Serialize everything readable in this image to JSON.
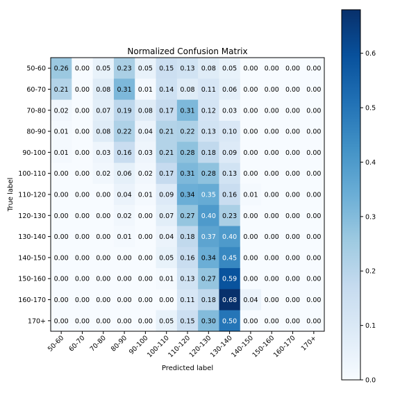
{
  "chart_data": {
    "type": "heatmap",
    "title": "Normalized Confusion Matrix",
    "xlabel": "Predicted label",
    "ylabel": "True label",
    "x_categories": [
      "50-60",
      "60-70",
      "70-80",
      "80-90",
      "90-100",
      "100-110",
      "110-120",
      "120-130",
      "130-140",
      "140-150",
      "150-160",
      "160-170",
      "170+"
    ],
    "y_categories": [
      "50-60",
      "60-70",
      "70-80",
      "80-90",
      "90-100",
      "100-110",
      "110-120",
      "120-130",
      "130-140",
      "140-150",
      "150-160",
      "160-170",
      "170+"
    ],
    "values": [
      [
        0.26,
        0.0,
        0.05,
        0.23,
        0.05,
        0.15,
        0.13,
        0.08,
        0.05,
        0.0,
        0.0,
        0.0,
        0.0
      ],
      [
        0.21,
        0.0,
        0.08,
        0.31,
        0.01,
        0.14,
        0.08,
        0.11,
        0.06,
        0.0,
        0.0,
        0.0,
        0.0
      ],
      [
        0.02,
        0.0,
        0.07,
        0.19,
        0.08,
        0.17,
        0.31,
        0.12,
        0.03,
        0.0,
        0.0,
        0.0,
        0.0
      ],
      [
        0.01,
        0.0,
        0.08,
        0.22,
        0.04,
        0.21,
        0.22,
        0.13,
        0.1,
        0.0,
        0.0,
        0.0,
        0.0
      ],
      [
        0.01,
        0.0,
        0.03,
        0.16,
        0.03,
        0.21,
        0.28,
        0.18,
        0.09,
        0.0,
        0.0,
        0.0,
        0.0
      ],
      [
        0.0,
        0.0,
        0.02,
        0.06,
        0.02,
        0.17,
        0.31,
        0.28,
        0.13,
        0.0,
        0.0,
        0.0,
        0.0
      ],
      [
        0.0,
        0.0,
        0.0,
        0.04,
        0.01,
        0.09,
        0.34,
        0.35,
        0.16,
        0.01,
        0.0,
        0.0,
        0.0
      ],
      [
        0.0,
        0.0,
        0.0,
        0.02,
        0.0,
        0.07,
        0.27,
        0.4,
        0.23,
        0.0,
        0.0,
        0.0,
        0.0
      ],
      [
        0.0,
        0.0,
        0.0,
        0.01,
        0.0,
        0.04,
        0.18,
        0.37,
        0.4,
        0.0,
        0.0,
        0.0,
        0.0
      ],
      [
        0.0,
        0.0,
        0.0,
        0.0,
        0.0,
        0.05,
        0.16,
        0.34,
        0.45,
        0.0,
        0.0,
        0.0,
        0.0
      ],
      [
        0.0,
        0.0,
        0.0,
        0.0,
        0.0,
        0.01,
        0.13,
        0.27,
        0.59,
        0.0,
        0.0,
        0.0,
        0.0
      ],
      [
        0.0,
        0.0,
        0.0,
        0.0,
        0.0,
        0.0,
        0.11,
        0.18,
        0.68,
        0.04,
        0.0,
        0.0,
        0.0
      ],
      [
        0.0,
        0.0,
        0.0,
        0.0,
        0.0,
        0.05,
        0.15,
        0.3,
        0.5,
        0.0,
        0.0,
        0.0,
        0.0
      ]
    ],
    "value_range": [
      0,
      0.68
    ],
    "colormap": "Blues",
    "colormap_low": "#f7fbff",
    "colormap_high": "#08306b",
    "colorbar_ticks": [
      0.0,
      0.1,
      0.2,
      0.3,
      0.4,
      0.5,
      0.6
    ],
    "colorbar_tick_labels": [
      "0.0",
      "0.1",
      "0.2",
      "0.3",
      "0.4",
      "0.5",
      "0.6"
    ],
    "grid": false,
    "cell_text_format": "2 decimals"
  }
}
